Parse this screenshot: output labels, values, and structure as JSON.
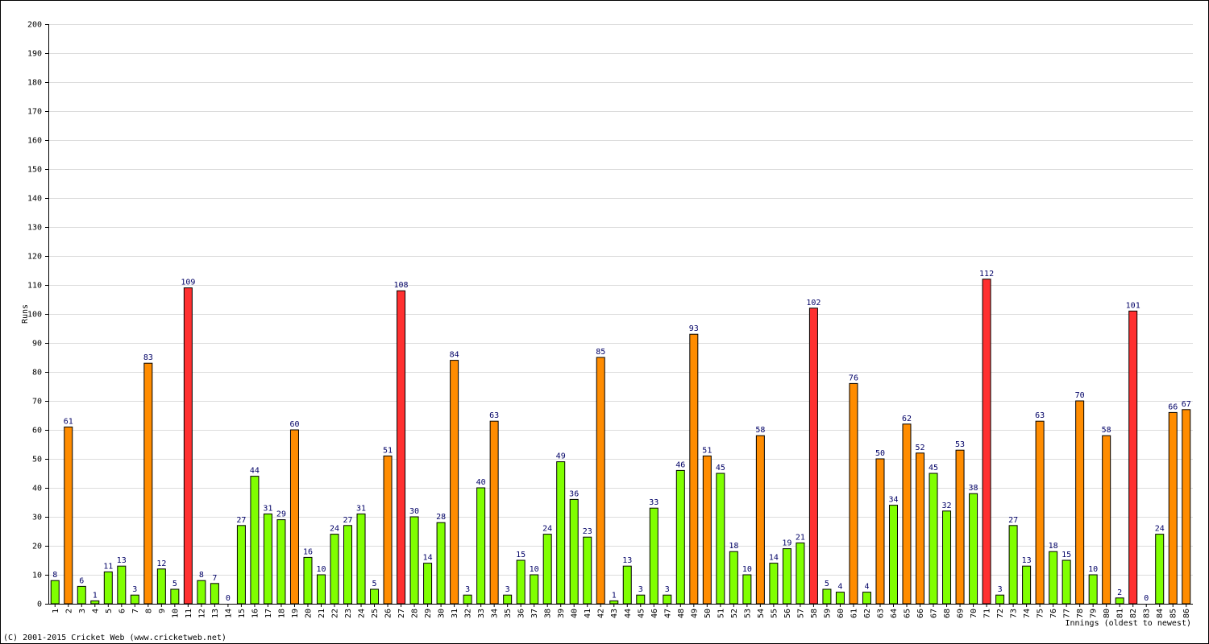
{
  "chart_data": {
    "type": "bar",
    "y_label": "Runs",
    "x_label": "Innings (oldest to newest)",
    "footer": "(C) 2001-2015 Cricket Web (www.cricketweb.net)",
    "categories": [
      "1",
      "2",
      "3",
      "4",
      "5",
      "6",
      "7",
      "8",
      "9",
      "10",
      "11",
      "12",
      "13",
      "14",
      "15",
      "16",
      "17",
      "18",
      "19",
      "20",
      "21",
      "22",
      "23",
      "24",
      "25",
      "26",
      "27",
      "28",
      "29",
      "30",
      "31",
      "32",
      "33",
      "34",
      "35",
      "36",
      "37",
      "38",
      "39",
      "40",
      "41",
      "42",
      "43",
      "44",
      "45",
      "46",
      "47",
      "48",
      "49",
      "50",
      "51",
      "52",
      "53",
      "54",
      "55",
      "56",
      "57",
      "58",
      "59",
      "60",
      "61",
      "62",
      "63",
      "64",
      "65",
      "66",
      "67",
      "68",
      "69",
      "70",
      "71",
      "72",
      "73",
      "74",
      "75",
      "76",
      "77",
      "78",
      "79",
      "80",
      "81",
      "82",
      "83",
      "84",
      "85",
      "86"
    ],
    "values": [
      8,
      61,
      6,
      1,
      11,
      13,
      3,
      83,
      12,
      5,
      109,
      8,
      7,
      0,
      27,
      44,
      31,
      29,
      60,
      16,
      10,
      24,
      27,
      31,
      5,
      51,
      108,
      30,
      14,
      28,
      84,
      3,
      40,
      63,
      3,
      15,
      10,
      24,
      49,
      36,
      23,
      85,
      1,
      13,
      3,
      33,
      3,
      46,
      93,
      51,
      45,
      18,
      10,
      58,
      14,
      19,
      21,
      102,
      5,
      4,
      76,
      4,
      50,
      34,
      62,
      52,
      45,
      32,
      53,
      38,
      112,
      3,
      27,
      13,
      63,
      18,
      15,
      70,
      10,
      58,
      2,
      101,
      0,
      24,
      66,
      67
    ],
    "colors": [
      "#80ff00",
      "#ff8c00",
      "#80ff00",
      "#80ff00",
      "#80ff00",
      "#80ff00",
      "#80ff00",
      "#ff8c00",
      "#80ff00",
      "#80ff00",
      "#ff3030",
      "#80ff00",
      "#80ff00",
      "#80ff00",
      "#80ff00",
      "#80ff00",
      "#80ff00",
      "#80ff00",
      "#ff8c00",
      "#80ff00",
      "#80ff00",
      "#80ff00",
      "#80ff00",
      "#80ff00",
      "#80ff00",
      "#ff8c00",
      "#ff3030",
      "#80ff00",
      "#80ff00",
      "#80ff00",
      "#ff8c00",
      "#80ff00",
      "#80ff00",
      "#ff8c00",
      "#80ff00",
      "#80ff00",
      "#80ff00",
      "#80ff00",
      "#80ff00",
      "#80ff00",
      "#80ff00",
      "#ff8c00",
      "#80ff00",
      "#80ff00",
      "#80ff00",
      "#80ff00",
      "#80ff00",
      "#80ff00",
      "#ff8c00",
      "#ff8c00",
      "#80ff00",
      "#80ff00",
      "#80ff00",
      "#ff8c00",
      "#80ff00",
      "#80ff00",
      "#80ff00",
      "#ff3030",
      "#80ff00",
      "#80ff00",
      "#ff8c00",
      "#80ff00",
      "#ff8c00",
      "#80ff00",
      "#ff8c00",
      "#ff8c00",
      "#80ff00",
      "#80ff00",
      "#ff8c00",
      "#80ff00",
      "#ff3030",
      "#80ff00",
      "#80ff00",
      "#80ff00",
      "#ff8c00",
      "#80ff00",
      "#80ff00",
      "#ff8c00",
      "#80ff00",
      "#ff8c00",
      "#80ff00",
      "#ff3030",
      "#80ff00",
      "#80ff00",
      "#ff8c00",
      "#ff8c00"
    ],
    "ylim": [
      0,
      200
    ],
    "yticks": [
      0,
      10,
      20,
      30,
      40,
      50,
      60,
      70,
      80,
      90,
      100,
      110,
      120,
      130,
      140,
      150,
      160,
      170,
      180,
      190,
      200
    ],
    "grid": true
  }
}
